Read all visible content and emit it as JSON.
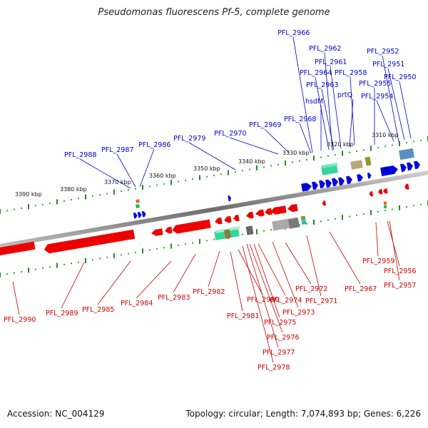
{
  "title": "Pseudomonas fluorescens Pf-5, complete genome",
  "footer": {
    "accession": "Accession: NC_004129",
    "summary": "Topology: circular; Length: 7,074,893 bp; Genes: 6,226"
  },
  "colors": {
    "forward_gene": "#0000dd",
    "reverse_gene": "#ee0000",
    "forward_label": "#0000cc",
    "reverse_label": "#cc0000",
    "backbone": "#888888",
    "tick_major": "#228822",
    "tick_minor": "#33aa33"
  },
  "scale_labels": [
    "3390 kbp",
    "3380 kbp",
    "3370 kbp",
    "3360 kbp",
    "3350 kbp",
    "3340 kbp",
    "3330 kbp",
    "3320 kbp",
    "3310 kbp"
  ],
  "forward_gene_labels": [
    "PFL_2966",
    "PFL_2962",
    "PFL_2952",
    "PFL_2961",
    "PFL_2951",
    "PFL_2964",
    "PFL_2958",
    "PFL_2950",
    "PFL_2963",
    "PFL_2955",
    "prtQ",
    "PFL_2954",
    "hsdM",
    "PFL_2968",
    "PFL_2969",
    "PFL_2970",
    "PFL_2979",
    "PFL_2986",
    "PFL_2987",
    "PFL_2988"
  ],
  "reverse_gene_labels": [
    "PFL_2990",
    "PFL_2989",
    "PFL_2985",
    "PFL_2984",
    "PFL_2983",
    "PFL_2982",
    "PFL_2981",
    "PFL_2980",
    "PFL_2974",
    "PFL_2975",
    "PFL_2976",
    "PFL_2977",
    "PFL_2978",
    "PFL_2973",
    "PFL_2972",
    "PFL_2971",
    "PFL_2967",
    "PFL_2959",
    "PFL_2956",
    "PFL_2957"
  ]
}
